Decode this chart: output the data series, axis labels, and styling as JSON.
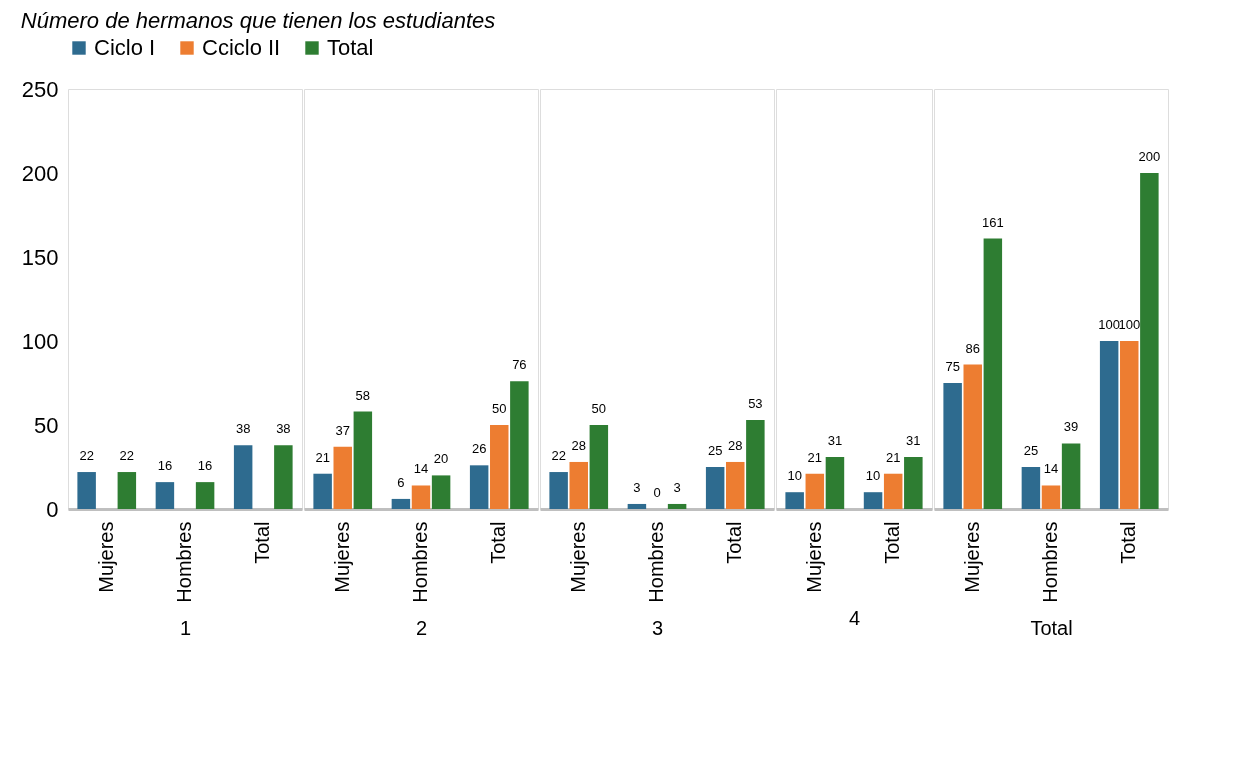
{
  "chart_data": [
    {
      "type": "bar",
      "title": "Número de hermanos que tienen los estudiantes",
      "xlabel": "1",
      "categories": [
        "Mujeres",
        "Hombres",
        "Total"
      ],
      "ylim": [
        0,
        250
      ],
      "yticks": [
        0,
        50,
        100,
        150,
        200,
        250
      ],
      "tick_labels": true,
      "data_labels": true,
      "legend": "top",
      "series": [
        {
          "name": "Ciclo I",
          "color": "#2e6b8f",
          "values": [
            22,
            16,
            38
          ]
        },
        {
          "name": "Cciclo II",
          "color": "#ed7d31",
          "values": [
            null,
            null,
            null
          ]
        },
        {
          "name": "Total",
          "color": "#2e7d32",
          "values": [
            22,
            16,
            38
          ]
        }
      ]
    },
    {
      "type": "bar",
      "xlabel": "2",
      "categories": [
        "Mujeres",
        "Hombres",
        "Total"
      ],
      "ylim": [
        0,
        250
      ],
      "yticks": [
        0,
        50,
        100,
        150,
        200,
        250
      ],
      "tick_labels": "x",
      "data_labels": true,
      "series": [
        {
          "color": "#2e6b8f",
          "values": [
            21,
            6,
            26
          ]
        },
        {
          "color": "#ed7d31",
          "values": [
            37,
            14,
            50
          ]
        },
        {
          "color": "#2e7d32",
          "values": [
            58,
            20,
            76
          ]
        }
      ]
    },
    {
      "type": "bar",
      "xlabel": "3",
      "categories": [
        "Mujeres",
        "Hombres",
        "Total"
      ],
      "ylim": [
        0,
        250
      ],
      "yticks": [
        0,
        50,
        100,
        150,
        200,
        250
      ],
      "tick_labels": "x",
      "data_labels": true,
      "series": [
        {
          "color": "#2e6b8f",
          "values": [
            22,
            3,
            25
          ]
        },
        {
          "color": "#ed7d31",
          "values": [
            28,
            0,
            28
          ]
        },
        {
          "color": "#2e7d32",
          "values": [
            50,
            3,
            53
          ]
        }
      ]
    },
    {
      "type": "bar",
      "xlabel": "4",
      "categories": [
        "Mujeres",
        "Total"
      ],
      "ylim": [
        0,
        250
      ],
      "yticks": [
        0,
        50,
        100,
        150,
        200,
        250
      ],
      "tick_labels": "x",
      "data_labels": true,
      "series": [
        {
          "color": "#2e6b8f",
          "values": [
            10,
            10
          ]
        },
        {
          "color": "#ed7d31",
          "values": [
            21,
            21
          ]
        },
        {
          "color": "#2e7d32",
          "values": [
            31,
            31
          ]
        }
      ]
    },
    {
      "type": "bar",
      "xlabel": "Total",
      "categories": [
        "Mujeres",
        "Hombres",
        "Total"
      ],
      "ylim": [
        0,
        250
      ],
      "yticks": [
        0,
        50,
        100,
        150,
        200,
        250
      ],
      "tick_labels": "x",
      "data_labels": true,
      "series": [
        {
          "color": "#2e6b8f",
          "values": [
            75,
            25,
            100
          ]
        },
        {
          "color": "#ed7d31",
          "values": [
            86,
            14,
            100
          ]
        },
        {
          "color": "#2e7d32",
          "values": [
            161,
            39,
            200
          ]
        }
      ]
    }
  ]
}
